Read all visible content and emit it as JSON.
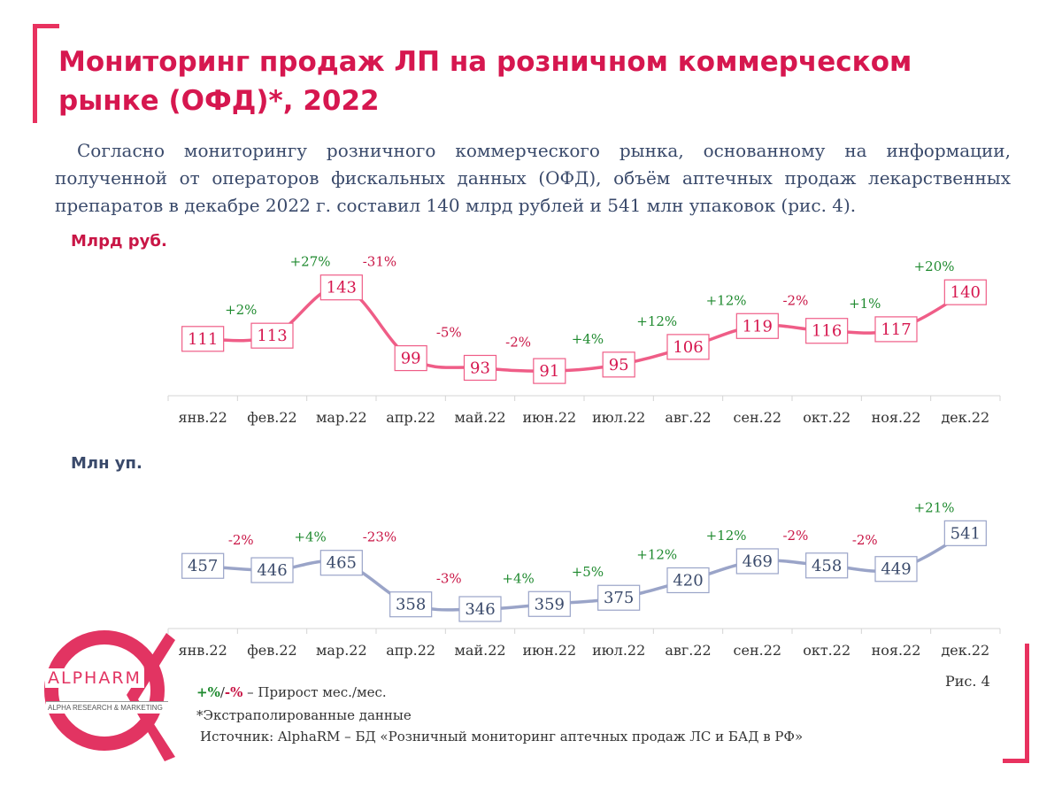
{
  "title": "Мониторинг продаж ЛП на розничном коммерческом рынке (ОФД)*, 2022",
  "intro": "Согласно мониторингу розничного коммерческого рынка, основанному на информации, полученной от операторов фискальных данных (ОФД), объём аптечных продаж лекарственных препаратов в декабре 2022 г. составил 140 млрд рублей и 541 млн упаковок (рис. 4).",
  "colors": {
    "accent": "#d6174f",
    "positive": "#1f8a2f",
    "negative": "#c91646",
    "rub_line": "#ef5d87",
    "pack_line": "#9aa4c8",
    "pack_text": "#3a4a6b"
  },
  "chart_data": [
    {
      "type": "line",
      "ylabel": "Млрд руб.",
      "categories": [
        "янв.22",
        "фев.22",
        "мар.22",
        "апр.22",
        "май.22",
        "июн.22",
        "июл.22",
        "авг.22",
        "сен.22",
        "окт.22",
        "ноя.22",
        "дек.22"
      ],
      "values": [
        111,
        113,
        143,
        99,
        93,
        91,
        95,
        106,
        119,
        116,
        117,
        140
      ],
      "changes": [
        "",
        "+2%",
        "+27%",
        "-31%",
        "-5%",
        "-2%",
        "+4%",
        "+12%",
        "+12%",
        "-2%",
        "+1%",
        "+20%"
      ],
      "ylim": [
        85,
        150
      ],
      "grid": false
    },
    {
      "type": "line",
      "ylabel": "Млн уп.",
      "categories": [
        "янв.22",
        "фев.22",
        "мар.22",
        "апр.22",
        "май.22",
        "июн.22",
        "июл.22",
        "авг.22",
        "сен.22",
        "окт.22",
        "ноя.22",
        "дек.22"
      ],
      "values": [
        457,
        446,
        465,
        358,
        346,
        359,
        375,
        420,
        469,
        458,
        449,
        541
      ],
      "changes": [
        "",
        "-2%",
        "+4%",
        "-23%",
        "-3%",
        "+4%",
        "+5%",
        "+12%",
        "+12%",
        "-2%",
        "-2%",
        "+21%"
      ],
      "ylim": [
        330,
        560
      ],
      "grid": false
    }
  ],
  "legend": {
    "growth_pos": "+%",
    "growth_sep": "/",
    "growth_neg": "-%",
    "growth_text": " – Прирост мес./мес.",
    "extrapolated": "*Экстраполированные данные",
    "source": "Источник: AlphaRM – БД «Розничный мониторинг аптечных продаж ЛС и БАД в РФ»"
  },
  "figure_label": "Рис. 4",
  "logo": {
    "name": "ALPHARM",
    "tagline": "ALPHA RESEARCH & MARKETING"
  }
}
